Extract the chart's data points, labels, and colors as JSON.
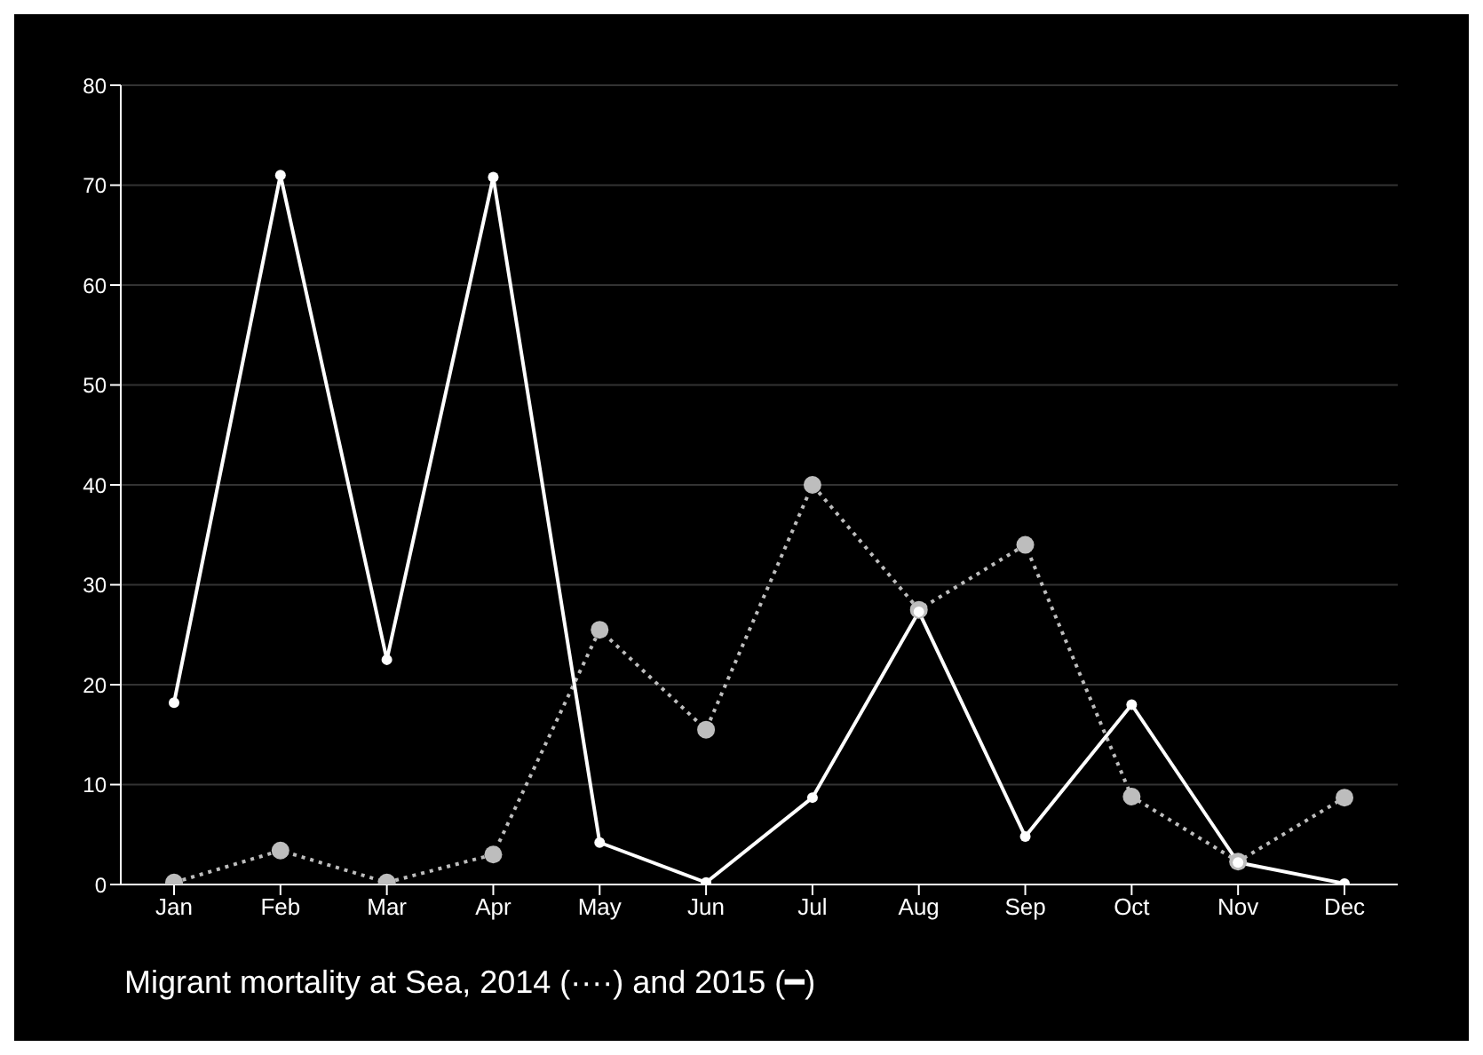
{
  "chart_data": {
    "type": "line",
    "title": "Migrant mortality at Sea, 2014 (····) and 2015 (━)",
    "categories": [
      "Jan",
      "Feb",
      "Mar",
      "Apr",
      "May",
      "Jun",
      "Jul",
      "Aug",
      "Sep",
      "Oct",
      "Nov",
      "Dec"
    ],
    "series": [
      {
        "color": "#bdbdbd",
        "line_style": "dotted",
        "values": [
          0.2,
          3.4,
          0.2,
          3,
          25.5,
          15.5,
          40,
          27.5,
          34,
          8.8,
          2.3,
          8.7
        ]
      },
      {
        "color": "#ffffff",
        "line_style": "solid",
        "values": [
          18.2,
          71,
          22.5,
          70.8,
          4.2,
          0.2,
          8.7,
          27.3,
          4.8,
          18,
          2.2,
          0.1
        ]
      }
    ],
    "ylim": [
      0,
      80
    ],
    "yticks": [
      0,
      10,
      20,
      30,
      40,
      50,
      60,
      70,
      80
    ],
    "grid": "y",
    "marker": "circle",
    "legend": false
  }
}
